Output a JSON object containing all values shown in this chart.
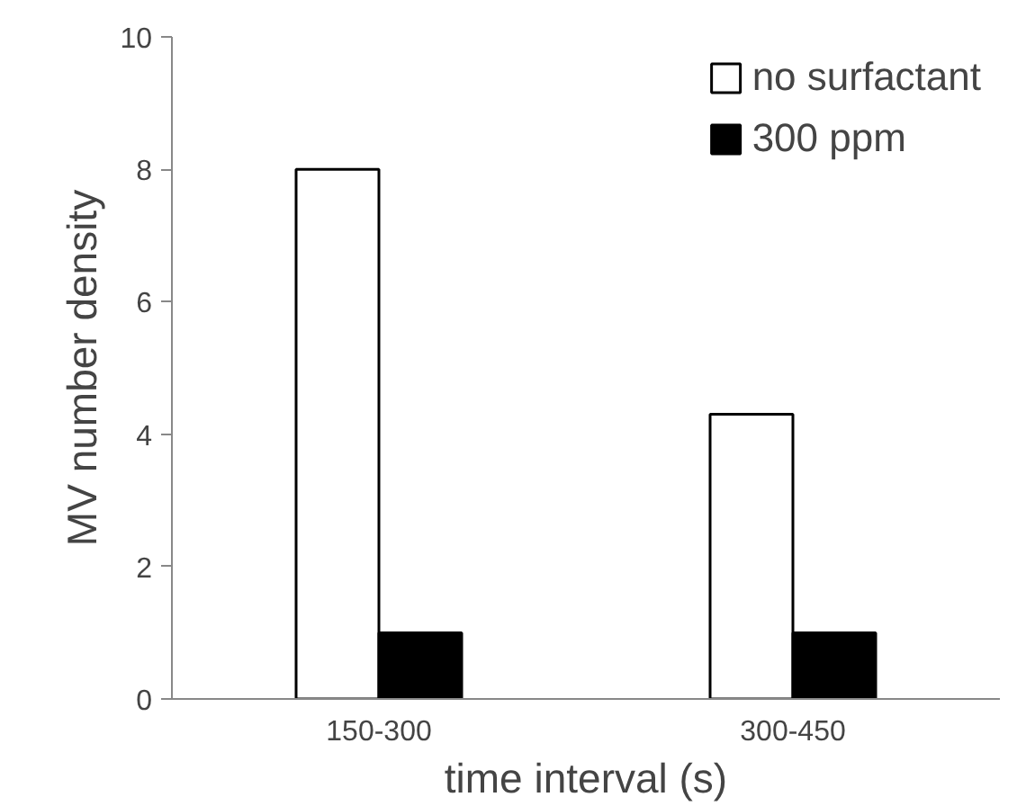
{
  "chart_data": {
    "type": "bar",
    "xlabel": "time interval (s)",
    "ylabel": "MV number density",
    "categories": [
      "150-300",
      "300-450"
    ],
    "series": [
      {
        "name": "no surfactant",
        "color": "#ffffff",
        "values": [
          8,
          4.3
        ]
      },
      {
        "name": "300 ppm",
        "color": "#000000",
        "values": [
          1,
          1
        ]
      }
    ],
    "ylim": [
      0,
      10
    ],
    "yticks": [
      0,
      2,
      4,
      6,
      8,
      10
    ],
    "grid": false,
    "legend": "top right"
  }
}
